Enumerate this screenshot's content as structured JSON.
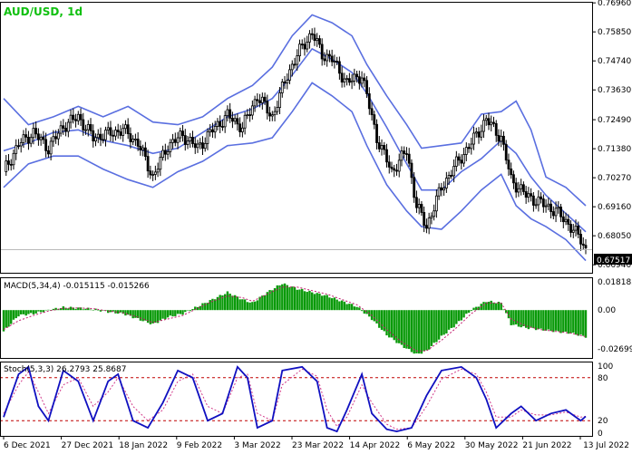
{
  "window": {
    "symbol_label": "AUD/USD, 1d",
    "price_tag": "0.67517"
  },
  "colors": {
    "candle": "#000000",
    "bollinger": "#5a6fe0",
    "macd_hist": "#0a9a0a",
    "macd_signal": "#c0186a",
    "stoch_main": "#1010c0",
    "stoch_signal": "#d23a8a",
    "stoch_levels": "#c00000",
    "symbol_text": "#10c010",
    "border": "#000000"
  },
  "price_axis": {
    "ticks": [
      "0.76960",
      "0.75850",
      "0.74740",
      "0.73630",
      "0.72490",
      "0.71380",
      "0.70270",
      "0.69160",
      "0.68050",
      "0.66940"
    ],
    "ylim": [
      0.666,
      0.77
    ]
  },
  "macd": {
    "label": "MACD(5,34,4) -0.015115 -0.015266",
    "ticks": [
      "0.018185",
      "0.00",
      "-0.026994"
    ],
    "ylim": [
      -0.0275,
      0.0185
    ]
  },
  "stoch": {
    "label": "Stoch(5,3,3) 26.2793 25.8687",
    "ticks": [
      "100",
      "80",
      "20",
      "0"
    ],
    "levels": [
      80,
      20
    ]
  },
  "time_axis": {
    "labels": [
      "6 Dec 2021",
      "27 Dec 2021",
      "18 Jan 2022",
      "9 Feb 2022",
      "3 Mar 2022",
      "23 Mar 2022",
      "14 Apr 2022",
      "6 May 2022",
      "30 May 2022",
      "21 Jun 2022",
      "13 Jul 2022"
    ]
  },
  "chart_data": {
    "type": "candlestick",
    "x_dates": [
      "6 Dec 2021",
      "27 Dec 2021",
      "18 Jan 2022",
      "9 Feb 2022",
      "3 Mar 2022",
      "23 Mar 2022",
      "14 Apr 2022",
      "6 May 2022",
      "30 May 2022",
      "21 Jun 2022",
      "13 Jul 2022"
    ],
    "last_price": 0.67517,
    "close_path": [
      [
        0,
        0.705
      ],
      [
        6,
        0.7155
      ],
      [
        12,
        0.72
      ],
      [
        18,
        0.714
      ],
      [
        24,
        0.7225
      ],
      [
        30,
        0.726
      ],
      [
        36,
        0.718
      ],
      [
        42,
        0.7195
      ],
      [
        48,
        0.721
      ],
      [
        54,
        0.716
      ],
      [
        60,
        0.703
      ],
      [
        66,
        0.715
      ],
      [
        72,
        0.719
      ],
      [
        78,
        0.714
      ],
      [
        84,
        0.721
      ],
      [
        90,
        0.7265
      ],
      [
        96,
        0.722
      ],
      [
        102,
        0.734
      ],
      [
        108,
        0.726
      ],
      [
        114,
        0.742
      ],
      [
        120,
        0.753
      ],
      [
        124,
        0.758
      ],
      [
        128,
        0.75
      ],
      [
        132,
        0.748
      ],
      [
        138,
        0.739
      ],
      [
        144,
        0.742
      ],
      [
        150,
        0.718
      ],
      [
        156,
        0.705
      ],
      [
        162,
        0.713
      ],
      [
        166,
        0.692
      ],
      [
        170,
        0.684
      ],
      [
        176,
        0.699
      ],
      [
        182,
        0.708
      ],
      [
        188,
        0.716
      ],
      [
        194,
        0.725
      ],
      [
        200,
        0.718
      ],
      [
        204,
        0.702
      ],
      [
        210,
        0.696
      ],
      [
        216,
        0.693
      ],
      [
        222,
        0.69
      ],
      [
        228,
        0.684
      ],
      [
        232,
        0.679
      ],
      [
        234,
        0.6752
      ]
    ],
    "bollinger_upper": [
      [
        0,
        0.733
      ],
      [
        10,
        0.723
      ],
      [
        20,
        0.726
      ],
      [
        30,
        0.73
      ],
      [
        40,
        0.726
      ],
      [
        50,
        0.73
      ],
      [
        60,
        0.724
      ],
      [
        70,
        0.723
      ],
      [
        80,
        0.726
      ],
      [
        90,
        0.733
      ],
      [
        100,
        0.738
      ],
      [
        108,
        0.745
      ],
      [
        116,
        0.757
      ],
      [
        124,
        0.765
      ],
      [
        132,
        0.762
      ],
      [
        140,
        0.757
      ],
      [
        146,
        0.746
      ],
      [
        154,
        0.734
      ],
      [
        162,
        0.723
      ],
      [
        168,
        0.714
      ],
      [
        176,
        0.715
      ],
      [
        184,
        0.716
      ],
      [
        192,
        0.727
      ],
      [
        200,
        0.728
      ],
      [
        206,
        0.732
      ],
      [
        212,
        0.721
      ],
      [
        218,
        0.703
      ],
      [
        226,
        0.699
      ],
      [
        234,
        0.692
      ]
    ],
    "bollinger_middle": [
      [
        0,
        0.713
      ],
      [
        10,
        0.716
      ],
      [
        20,
        0.72
      ],
      [
        30,
        0.721
      ],
      [
        40,
        0.717
      ],
      [
        50,
        0.715
      ],
      [
        60,
        0.712
      ],
      [
        70,
        0.714
      ],
      [
        80,
        0.72
      ],
      [
        90,
        0.726
      ],
      [
        100,
        0.729
      ],
      [
        108,
        0.733
      ],
      [
        116,
        0.742
      ],
      [
        124,
        0.752
      ],
      [
        132,
        0.748
      ],
      [
        140,
        0.743
      ],
      [
        146,
        0.735
      ],
      [
        154,
        0.722
      ],
      [
        162,
        0.708
      ],
      [
        168,
        0.698
      ],
      [
        176,
        0.698
      ],
      [
        184,
        0.705
      ],
      [
        192,
        0.71
      ],
      [
        200,
        0.717
      ],
      [
        206,
        0.712
      ],
      [
        212,
        0.703
      ],
      [
        218,
        0.696
      ],
      [
        226,
        0.689
      ],
      [
        234,
        0.682
      ]
    ],
    "bollinger_lower": [
      [
        0,
        0.699
      ],
      [
        10,
        0.708
      ],
      [
        20,
        0.711
      ],
      [
        30,
        0.711
      ],
      [
        40,
        0.706
      ],
      [
        50,
        0.702
      ],
      [
        60,
        0.699
      ],
      [
        70,
        0.705
      ],
      [
        80,
        0.709
      ],
      [
        90,
        0.715
      ],
      [
        100,
        0.716
      ],
      [
        108,
        0.718
      ],
      [
        116,
        0.728
      ],
      [
        124,
        0.739
      ],
      [
        132,
        0.734
      ],
      [
        140,
        0.728
      ],
      [
        146,
        0.715
      ],
      [
        154,
        0.7
      ],
      [
        162,
        0.69
      ],
      [
        168,
        0.684
      ],
      [
        176,
        0.683
      ],
      [
        184,
        0.69
      ],
      [
        192,
        0.698
      ],
      [
        200,
        0.704
      ],
      [
        206,
        0.692
      ],
      [
        212,
        0.687
      ],
      [
        218,
        0.684
      ],
      [
        226,
        0.679
      ],
      [
        234,
        0.671
      ]
    ],
    "macd_hist": [
      [
        0,
        -0.012
      ],
      [
        6,
        -0.003
      ],
      [
        12,
        -0.002
      ],
      [
        18,
        0.0
      ],
      [
        24,
        0.0015
      ],
      [
        30,
        0.0012
      ],
      [
        36,
        0.0005
      ],
      [
        42,
        -0.001
      ],
      [
        48,
        -0.002
      ],
      [
        54,
        -0.005
      ],
      [
        60,
        -0.008
      ],
      [
        66,
        -0.004
      ],
      [
        72,
        -0.002
      ],
      [
        78,
        0.002
      ],
      [
        84,
        0.006
      ],
      [
        90,
        0.01
      ],
      [
        96,
        0.006
      ],
      [
        100,
        0.004
      ],
      [
        106,
        0.01
      ],
      [
        112,
        0.015
      ],
      [
        118,
        0.012
      ],
      [
        124,
        0.01
      ],
      [
        130,
        0.008
      ],
      [
        136,
        0.005
      ],
      [
        142,
        0.002
      ],
      [
        148,
        -0.005
      ],
      [
        154,
        -0.014
      ],
      [
        160,
        -0.02
      ],
      [
        166,
        -0.025
      ],
      [
        170,
        -0.023
      ],
      [
        176,
        -0.015
      ],
      [
        182,
        -0.008
      ],
      [
        188,
        0.0
      ],
      [
        194,
        0.005
      ],
      [
        200,
        0.004
      ],
      [
        204,
        -0.008
      ],
      [
        210,
        -0.01
      ],
      [
        216,
        -0.011
      ],
      [
        222,
        -0.012
      ],
      [
        228,
        -0.013
      ],
      [
        234,
        -0.015
      ]
    ],
    "macd_signal": [
      [
        0,
        -0.011
      ],
      [
        6,
        -0.006
      ],
      [
        12,
        -0.003
      ],
      [
        18,
        -0.0005
      ],
      [
        24,
        0.001
      ],
      [
        30,
        0.0012
      ],
      [
        36,
        0.0008
      ],
      [
        42,
        -0.0005
      ],
      [
        48,
        -0.0015
      ],
      [
        54,
        -0.004
      ],
      [
        60,
        -0.007
      ],
      [
        66,
        -0.005
      ],
      [
        72,
        -0.003
      ],
      [
        78,
        0.001
      ],
      [
        84,
        0.005
      ],
      [
        90,
        0.008
      ],
      [
        96,
        0.007
      ],
      [
        100,
        0.005
      ],
      [
        106,
        0.009
      ],
      [
        112,
        0.013
      ],
      [
        118,
        0.013
      ],
      [
        124,
        0.011
      ],
      [
        130,
        0.009
      ],
      [
        136,
        0.006
      ],
      [
        142,
        0.003
      ],
      [
        148,
        -0.003
      ],
      [
        154,
        -0.011
      ],
      [
        160,
        -0.018
      ],
      [
        166,
        -0.023
      ],
      [
        170,
        -0.023
      ],
      [
        176,
        -0.017
      ],
      [
        182,
        -0.01
      ],
      [
        188,
        -0.002
      ],
      [
        194,
        0.004
      ],
      [
        200,
        0.004
      ],
      [
        204,
        -0.005
      ],
      [
        210,
        -0.009
      ],
      [
        216,
        -0.011
      ],
      [
        222,
        -0.012
      ],
      [
        228,
        -0.013
      ],
      [
        234,
        -0.015
      ]
    ],
    "stoch_main": [
      [
        0,
        25
      ],
      [
        6,
        85
      ],
      [
        10,
        95
      ],
      [
        14,
        40
      ],
      [
        18,
        20
      ],
      [
        24,
        90
      ],
      [
        30,
        75
      ],
      [
        36,
        20
      ],
      [
        42,
        75
      ],
      [
        46,
        85
      ],
      [
        52,
        20
      ],
      [
        58,
        10
      ],
      [
        64,
        45
      ],
      [
        70,
        90
      ],
      [
        76,
        80
      ],
      [
        82,
        20
      ],
      [
        88,
        30
      ],
      [
        94,
        95
      ],
      [
        98,
        80
      ],
      [
        102,
        10
      ],
      [
        108,
        20
      ],
      [
        112,
        90
      ],
      [
        120,
        95
      ],
      [
        126,
        75
      ],
      [
        130,
        10
      ],
      [
        134,
        5
      ],
      [
        138,
        35
      ],
      [
        144,
        85
      ],
      [
        148,
        30
      ],
      [
        154,
        8
      ],
      [
        158,
        5
      ],
      [
        164,
        10
      ],
      [
        170,
        55
      ],
      [
        176,
        90
      ],
      [
        184,
        95
      ],
      [
        190,
        80
      ],
      [
        194,
        50
      ],
      [
        198,
        10
      ],
      [
        204,
        30
      ],
      [
        208,
        40
      ],
      [
        214,
        20
      ],
      [
        220,
        30
      ],
      [
        226,
        35
      ],
      [
        232,
        20
      ],
      [
        234,
        26
      ]
    ],
    "stoch_signal": [
      [
        0,
        30
      ],
      [
        6,
        70
      ],
      [
        10,
        88
      ],
      [
        14,
        60
      ],
      [
        18,
        30
      ],
      [
        24,
        70
      ],
      [
        30,
        80
      ],
      [
        36,
        40
      ],
      [
        42,
        60
      ],
      [
        46,
        80
      ],
      [
        52,
        40
      ],
      [
        58,
        20
      ],
      [
        64,
        35
      ],
      [
        70,
        75
      ],
      [
        76,
        85
      ],
      [
        82,
        40
      ],
      [
        88,
        30
      ],
      [
        94,
        80
      ],
      [
        98,
        85
      ],
      [
        102,
        30
      ],
      [
        108,
        20
      ],
      [
        112,
        70
      ],
      [
        120,
        92
      ],
      [
        126,
        82
      ],
      [
        130,
        35
      ],
      [
        134,
        12
      ],
      [
        138,
        25
      ],
      [
        144,
        70
      ],
      [
        148,
        45
      ],
      [
        154,
        15
      ],
      [
        158,
        8
      ],
      [
        164,
        10
      ],
      [
        170,
        40
      ],
      [
        176,
        78
      ],
      [
        184,
        92
      ],
      [
        190,
        85
      ],
      [
        194,
        60
      ],
      [
        198,
        25
      ],
      [
        204,
        25
      ],
      [
        208,
        35
      ],
      [
        214,
        28
      ],
      [
        220,
        28
      ],
      [
        226,
        32
      ],
      [
        232,
        25
      ],
      [
        234,
        26
      ]
    ]
  }
}
